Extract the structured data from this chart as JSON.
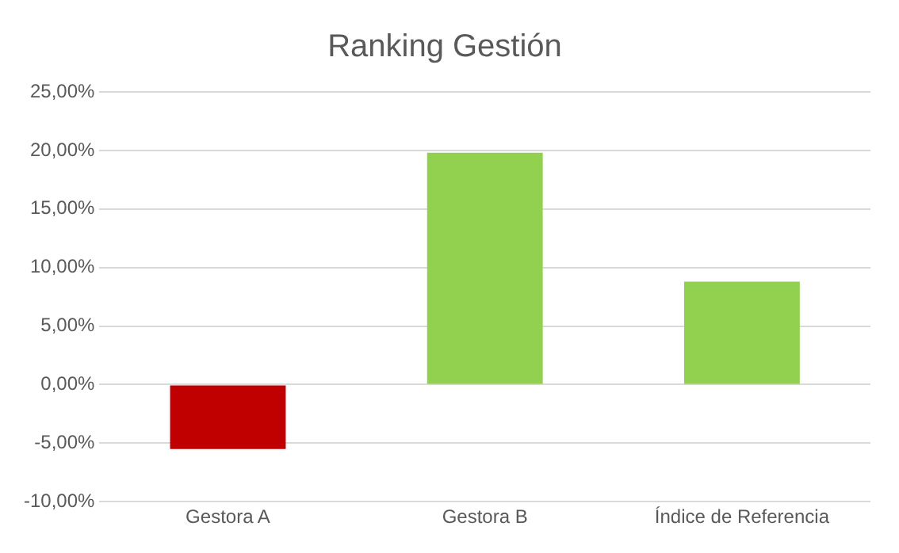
{
  "chart_data": {
    "type": "bar",
    "title": "Ranking Gestión",
    "categories": [
      "Gestora A",
      "Gestora B",
      "Índice de Referencia"
    ],
    "values": [
      -5.5,
      19.8,
      8.8
    ],
    "colors": [
      "#c00000",
      "#92d050",
      "#92d050"
    ],
    "ylim": [
      -10,
      25
    ],
    "yticks": [
      {
        "value": -10,
        "label": "-10,00%"
      },
      {
        "value": -5,
        "label": "-5,00%"
      },
      {
        "value": 0,
        "label": "0,00%"
      },
      {
        "value": 5,
        "label": "5,00%"
      },
      {
        "value": 10,
        "label": "10,00%"
      },
      {
        "value": 15,
        "label": "15,00%"
      },
      {
        "value": 20,
        "label": "20,00%"
      },
      {
        "value": 25,
        "label": "25,00%"
      }
    ],
    "grid": "y",
    "legend": false
  }
}
